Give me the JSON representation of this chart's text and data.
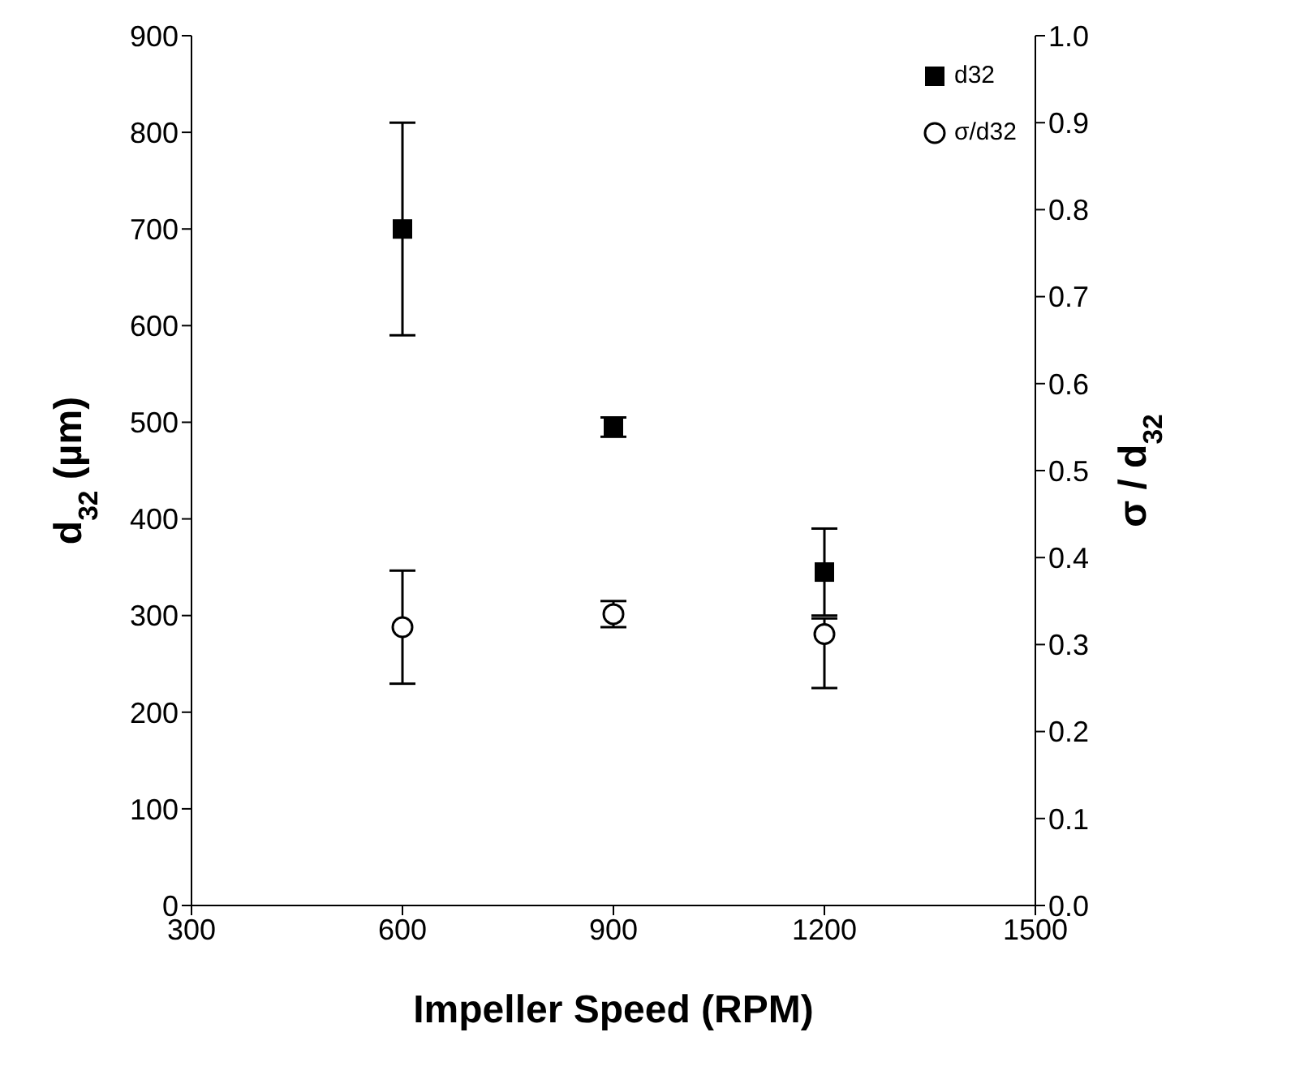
{
  "chart_data": {
    "type": "scatter",
    "xlabel": "Impeller Speed (RPM)",
    "ylabel": "d$_{32}$ (µm)",
    "y2label": "σ / d$_{32}$",
    "x": [
      600,
      900,
      1200
    ],
    "series": [
      {
        "name": "d32",
        "color": "#000000",
        "marker": "square",
        "values": [
          700,
          495,
          345
        ],
        "errors": [
          [
            590,
            810
          ],
          [
            485,
            505
          ],
          [
            300,
            390
          ]
        ]
      },
      {
        "name": "σ/d32",
        "color": "#000000",
        "marker": "circle",
        "axis": "y2",
        "values": [
          0.32,
          0.335,
          0.312
        ],
        "errors": [
          [
            0.255,
            0.385
          ],
          [
            0.32,
            0.35
          ],
          [
            0.25,
            0.33
          ]
        ]
      }
    ],
    "xlim": [
      300,
      1500
    ],
    "xticks": [
      300,
      600,
      900,
      1200,
      1500
    ],
    "ylim": [
      0,
      900
    ],
    "yticks": [
      0,
      100,
      200,
      300,
      400,
      500,
      600,
      700,
      800,
      900
    ],
    "y2lim": [
      0,
      1
    ],
    "y2ticks": [
      {
        "value": 0,
        "label": "0.0"
      },
      {
        "value": 0.1,
        "label": "0.1"
      },
      {
        "value": 0.2,
        "label": "0.2"
      },
      {
        "value": 0.3,
        "label": "0.3"
      },
      {
        "value": 0.4,
        "label": "0.4"
      },
      {
        "value": 0.5,
        "label": "0.5"
      },
      {
        "value": 0.6,
        "label": "0.6"
      },
      {
        "value": 0.7,
        "label": "0.7"
      },
      {
        "value": 0.8,
        "label": "0.8"
      },
      {
        "value": 0.9,
        "label": "0.9"
      },
      {
        "value": 1,
        "label": "1.0"
      }
    ],
    "grid": false,
    "legend": "top right"
  }
}
